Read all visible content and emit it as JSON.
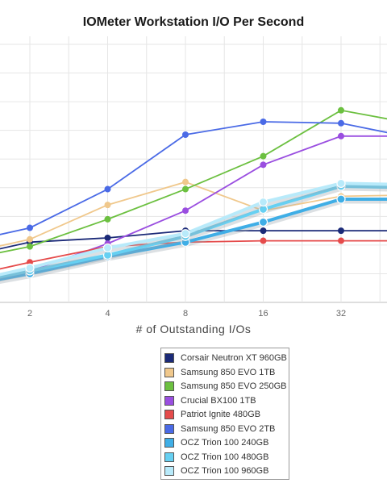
{
  "chart_data": {
    "type": "line",
    "title": "IOMeter Workstation I/O Per Second",
    "xlabel": "# of Outstanding I/Os",
    "ylabel": "",
    "x": [
      1,
      2,
      4,
      8,
      16,
      32,
      64
    ],
    "x_tick_labels": [
      "2",
      "4",
      "8",
      "16",
      "32"
    ],
    "y_range": [
      0,
      9
    ],
    "grid": true,
    "legend": "bottom-center",
    "series": [
      {
        "name": "Corsair Neutron XT 960GB",
        "color": "#1b2a78",
        "values": [
          1.5,
          2.1,
          2.25,
          2.5,
          2.5,
          2.5,
          2.5
        ]
      },
      {
        "name": "Samsung 850 EVO 1TB",
        "color": "#f0c88c",
        "values": [
          1.6,
          2.2,
          3.4,
          4.2,
          3.2,
          3.7,
          3.75
        ]
      },
      {
        "name": "Samsung 850 EVO 250GB",
        "color": "#6cc040",
        "values": [
          1.4,
          1.95,
          2.9,
          3.95,
          5.1,
          6.7,
          6.2
        ]
      },
      {
        "name": "Crucial BX100 1TB",
        "color": "#9a4ee0",
        "values": [
          0.6,
          1.1,
          2.05,
          3.2,
          4.8,
          5.8,
          5.8
        ]
      },
      {
        "name": "Patriot Ignite 480GB",
        "color": "#e54b4b",
        "values": [
          0.8,
          1.4,
          1.95,
          2.1,
          2.15,
          2.15,
          2.15
        ]
      },
      {
        "name": "Samsung 850 EVO 2TB",
        "color": "#4a6ae6",
        "values": [
          2.0,
          2.6,
          3.95,
          5.85,
          6.3,
          6.25,
          5.7
        ]
      },
      {
        "name": "OCZ Trion 100 240GB",
        "color": "#3faee6",
        "values": [
          0.5,
          1.0,
          1.6,
          2.1,
          2.8,
          3.6,
          3.6
        ]
      },
      {
        "name": "OCZ Trion 100 480GB",
        "color": "#66d0f2",
        "values": [
          0.55,
          1.1,
          1.65,
          2.3,
          3.25,
          4.05,
          4.0
        ]
      },
      {
        "name": "OCZ Trion 100 960GB",
        "color": "#b8eafa",
        "values": [
          0.6,
          1.2,
          1.9,
          2.4,
          3.5,
          4.15,
          4.1
        ]
      }
    ]
  }
}
